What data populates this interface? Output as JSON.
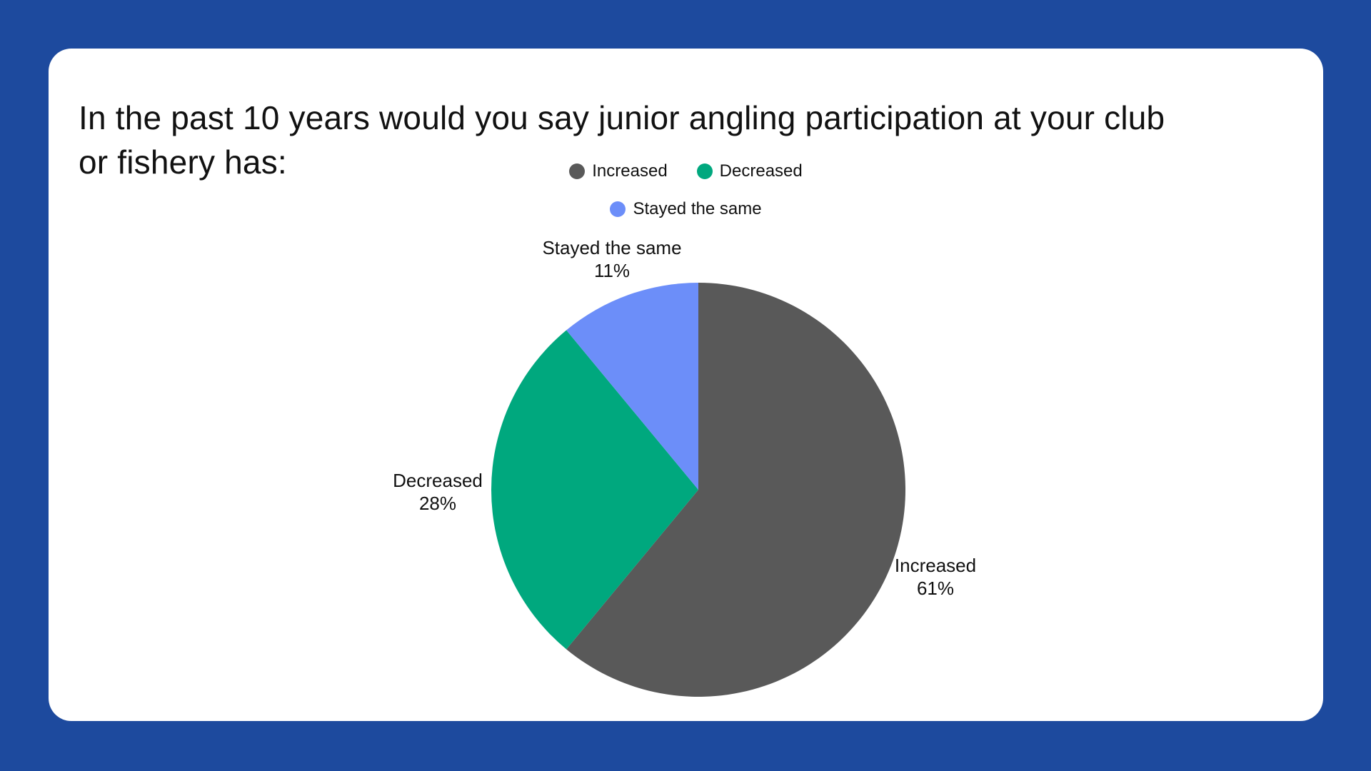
{
  "colors": {
    "background": "#1d4a9e",
    "card": "#ffffff",
    "text": "#111111"
  },
  "title": {
    "lines": [
      "In the past 10 years would you say junior angling participation at your club",
      "or fishery has:"
    ]
  },
  "chart_data": {
    "type": "pie",
    "title": "In the past 10 years would you say junior angling participation at your club or fishery has:",
    "categories": [
      "Increased",
      "Decreased",
      "Stayed the same"
    ],
    "values": [
      61,
      28,
      11
    ],
    "value_labels": [
      "61%",
      "28%",
      "11%"
    ],
    "colors": [
      "#595959",
      "#00a87e",
      "#6c8ef9"
    ],
    "start_angle_deg": 0,
    "direction": "clockwise",
    "legend_position": "top-center",
    "labels_position": "outside"
  }
}
